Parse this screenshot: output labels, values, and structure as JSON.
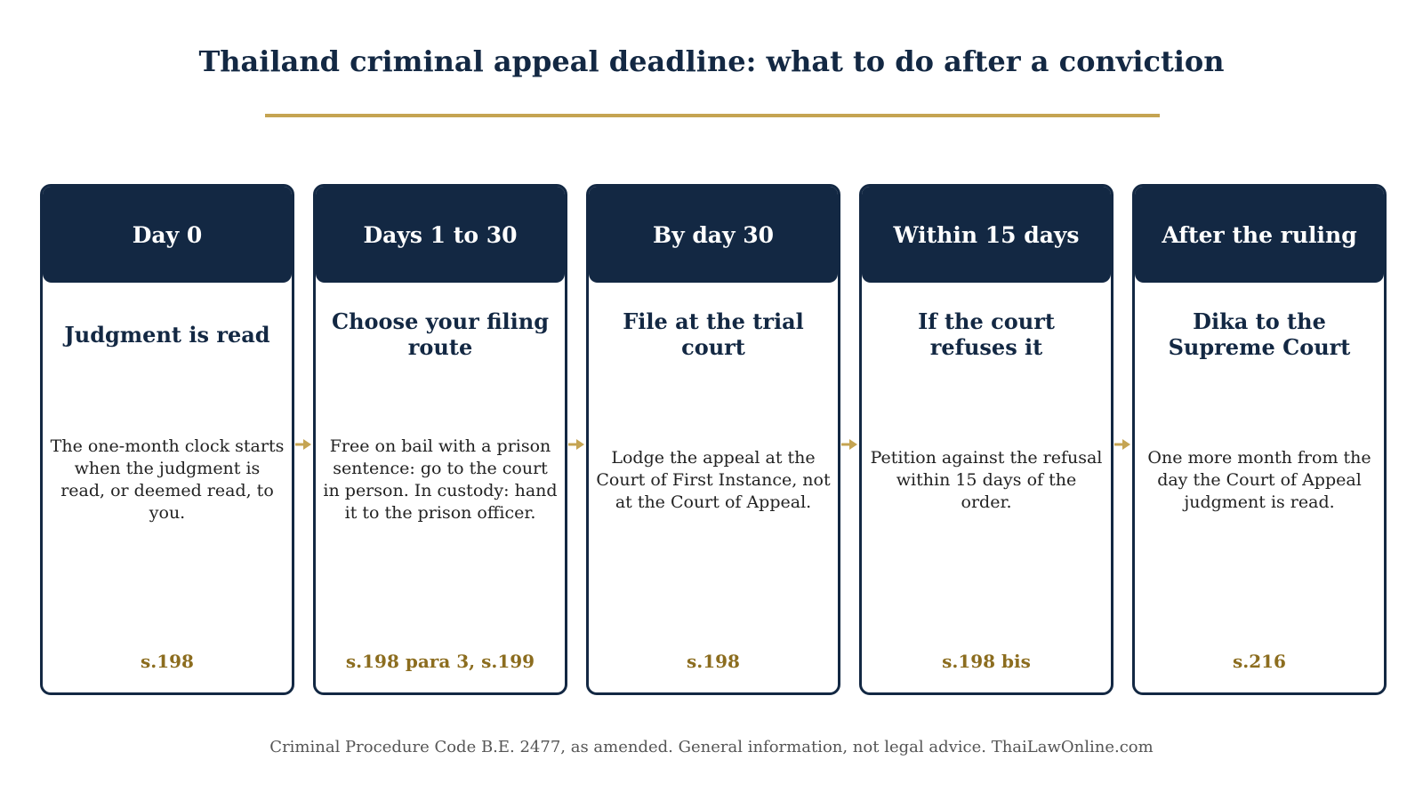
{
  "title": "Thailand criminal appeal deadline: what to do after a conviction",
  "colors": {
    "navy": "#132843",
    "gold": "#c5a452",
    "ref_text": "#8c6d1f"
  },
  "steps": [
    {
      "header": "Day 0",
      "subtitle": "Judgment is read",
      "body": "The one-month clock starts when the judgment is read, or deemed read, to you.",
      "ref": "s.198"
    },
    {
      "header": "Days 1 to 30",
      "subtitle": "Choose your filing route",
      "body": "Free on bail with a prison sentence: go to the court in person. In custody: hand it to the prison officer.",
      "ref": "s.198 para 3, s.199"
    },
    {
      "header": "By day 30",
      "subtitle": "File at the trial court",
      "body": "Lodge the appeal at the Court of First Instance, not at the Court of Appeal.",
      "ref": "s.198"
    },
    {
      "header": "Within 15 days",
      "subtitle": "If the court refuses it",
      "body": "Petition against the refusal within 15 days of the order.",
      "ref": "s.198 bis"
    },
    {
      "header": "After the ruling",
      "subtitle": "Dika to the Supreme Court",
      "body": "One more month from the day the Court of Appeal judgment is read.",
      "ref": "s.216"
    }
  ],
  "footer": "Criminal Procedure Code B.E. 2477, as amended. General information, not legal advice. ThaiLawOnline.com"
}
